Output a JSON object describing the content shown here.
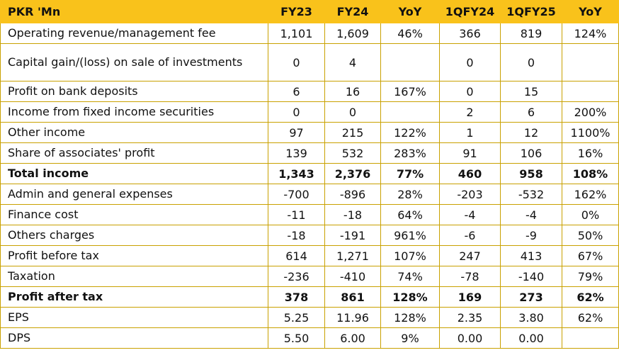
{
  "header": {
    "label": "PKR 'Mn",
    "columns": [
      "FY23",
      "FY24",
      "YoY",
      "1QFY24",
      "1QFY25",
      "YoY"
    ]
  },
  "rows": [
    {
      "label": "Operating revenue/management fee",
      "values": [
        "1,101",
        "1,609",
        "46%",
        "366",
        "819",
        "124%"
      ],
      "bold": false
    },
    {
      "label": "Capital gain/(loss) on sale of investments",
      "values": [
        "0",
        "4",
        "",
        "0",
        "0",
        ""
      ],
      "bold": false
    },
    {
      "label": "Profit on bank deposits",
      "values": [
        "6",
        "16",
        "167%",
        "0",
        "15",
        ""
      ],
      "bold": false
    },
    {
      "label": "Income from fixed income securities",
      "values": [
        "0",
        "0",
        "",
        "2",
        "6",
        "200%"
      ],
      "bold": false
    },
    {
      "label": "Other income",
      "values": [
        "97",
        "215",
        "122%",
        "1",
        "12",
        "1100%"
      ],
      "bold": false
    },
    {
      "label": "Share of associates' profit",
      "values": [
        "139",
        "532",
        "283%",
        "91",
        "106",
        "16%"
      ],
      "bold": false
    },
    {
      "label": "Total income",
      "values": [
        "1,343",
        "2,376",
        "77%",
        "460",
        "958",
        "108%"
      ],
      "bold": true
    },
    {
      "label": "Admin and general expenses",
      "values": [
        "-700",
        "-896",
        "28%",
        "-203",
        "-532",
        "162%"
      ],
      "bold": false
    },
    {
      "label": "Finance cost",
      "values": [
        "-11",
        "-18",
        "64%",
        "-4",
        "-4",
        "0%"
      ],
      "bold": false
    },
    {
      "label": "Others charges",
      "values": [
        "-18",
        "-191",
        "961%",
        "-6",
        "-9",
        "50%"
      ],
      "bold": false
    },
    {
      "label": "Profit before tax",
      "values": [
        "614",
        "1,271",
        "107%",
        "247",
        "413",
        "67%"
      ],
      "bold": false
    },
    {
      "label": "Taxation",
      "values": [
        "-236",
        "-410",
        "74%",
        "-78",
        "-140",
        "79%"
      ],
      "bold": false
    },
    {
      "label": "Profit after tax",
      "values": [
        "378",
        "861",
        "128%",
        "169",
        "273",
        "62%"
      ],
      "bold": true
    },
    {
      "label": "EPS",
      "values": [
        "5.25",
        "11.96",
        "128%",
        "2.35",
        "3.80",
        "62%"
      ],
      "bold": false
    },
    {
      "label": "DPS",
      "values": [
        "5.50",
        "6.00",
        "9%",
        "0.00",
        "0.00",
        ""
      ],
      "bold": false
    }
  ],
  "colors": {
    "header_bg": "#f9c21b",
    "border": "#c9a100"
  }
}
